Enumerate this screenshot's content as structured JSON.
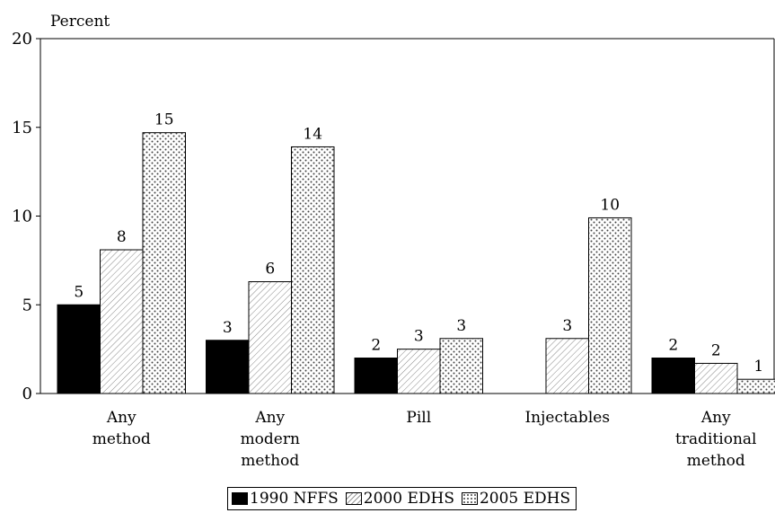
{
  "chart_data": {
    "type": "bar",
    "ylabel": "Percent",
    "ylim": [
      0,
      20
    ],
    "yticks": [
      0,
      5,
      10,
      15,
      20
    ],
    "categories": [
      [
        "Any",
        "method"
      ],
      [
        "Any",
        "modern",
        "method"
      ],
      [
        "Pill"
      ],
      [
        "Injectables"
      ],
      [
        "Any",
        "traditional",
        "method"
      ]
    ],
    "series": [
      {
        "name": "1990 NFFS",
        "values": [
          5,
          3,
          2,
          null,
          2
        ],
        "labels": [
          "5",
          "3",
          "2",
          "",
          "2"
        ],
        "color": "#000000"
      },
      {
        "name": "2000 EDHS",
        "values": [
          8.1,
          6.3,
          2.5,
          3.1,
          1.7
        ],
        "labels": [
          "8",
          "6",
          "3",
          "3",
          "2"
        ],
        "color": "#ffffff"
      },
      {
        "name": "2005 EDHS",
        "values": [
          14.7,
          13.9,
          3.1,
          9.9,
          0.8
        ],
        "labels": [
          "15",
          "14",
          "3",
          "10",
          "1"
        ],
        "color": "#ffffff"
      }
    ],
    "grid": false,
    "legend_position": "bottom"
  }
}
